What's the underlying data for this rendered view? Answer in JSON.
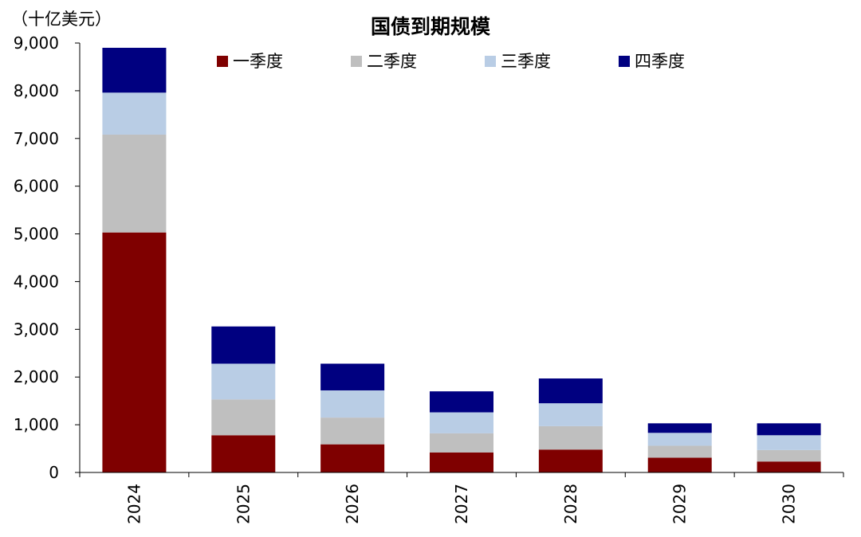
{
  "chart_data": {
    "type": "bar",
    "stacked": true,
    "title": "国债到期规模",
    "unit_label": "（十亿美元）",
    "categories": [
      "2024",
      "2025",
      "2026",
      "2027",
      "2028",
      "2029",
      "2030"
    ],
    "series": [
      {
        "name": "一季度",
        "color": "#7f0000",
        "values": [
          5030,
          780,
          590,
          420,
          480,
          310,
          230
        ]
      },
      {
        "name": "二季度",
        "color": "#bfbfbf",
        "values": [
          2050,
          750,
          560,
          400,
          490,
          250,
          240
        ]
      },
      {
        "name": "三季度",
        "color": "#b9cde5",
        "values": [
          880,
          750,
          570,
          440,
          480,
          270,
          310
        ]
      },
      {
        "name": "四季度",
        "color": "#000080",
        "values": [
          940,
          780,
          560,
          440,
          520,
          200,
          250
        ]
      }
    ],
    "ylim": [
      0,
      9000
    ],
    "yticks": [
      "0",
      "1,000",
      "2,000",
      "3,000",
      "4,000",
      "5,000",
      "6,000",
      "7,000",
      "8,000",
      "9,000"
    ],
    "grid": false,
    "legend_position": "top"
  }
}
